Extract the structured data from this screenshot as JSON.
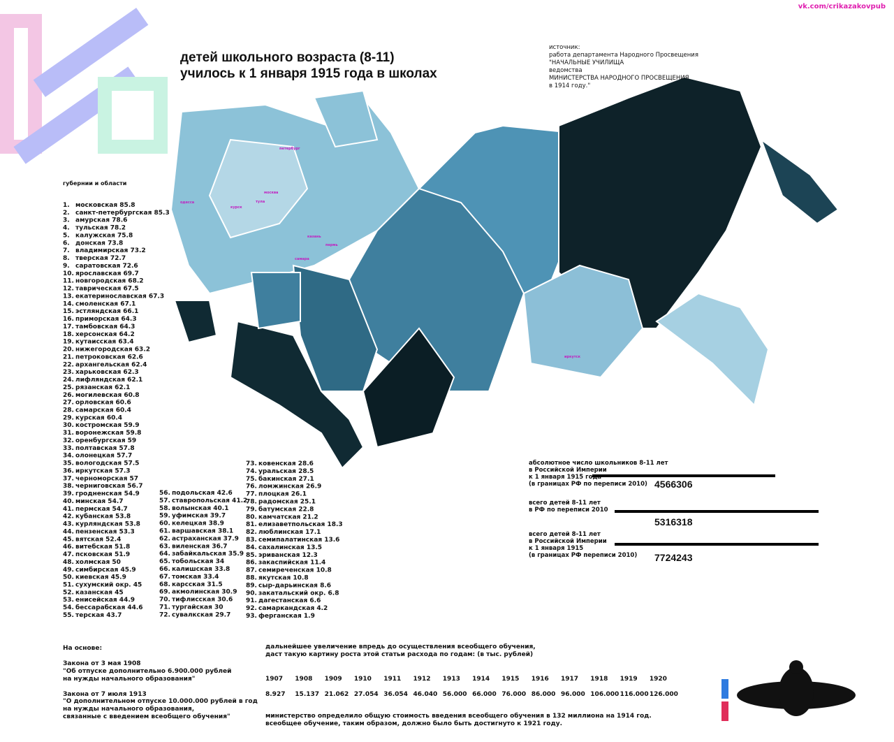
{
  "header": {
    "credit": "vk.com/crikazakovpub",
    "title": [
      "детей школьного возраста (8-11)",
      "училось к 1 января 1915 года в школах"
    ],
    "source": [
      "источник:",
      "работа департамента Народного Просвещения",
      "\"НАЧАЛЬНЫЕ УЧИЛИЩА",
      "ведомства",
      "МИНИСТЕРСТВА НАРОДНОГО ПРОСВЕЩЕНИЯ",
      "в 1914 году.\""
    ]
  },
  "map_labels": [
    "петербург",
    "москва",
    "тула",
    "курск",
    "одесса",
    "казань",
    "пермь",
    "самара",
    "иркутск"
  ],
  "list": {
    "title": "губернии и области",
    "items": [
      [
        "1.",
        "московская 85.8"
      ],
      [
        "2.",
        "санкт-петербургская 85.3"
      ],
      [
        "3.",
        "амурская 78.6"
      ],
      [
        "4.",
        "тульская 78.2"
      ],
      [
        "5.",
        "калужская 75.8"
      ],
      [
        "6.",
        "донская 73.8"
      ],
      [
        "7.",
        "владимирская 73.2"
      ],
      [
        "8.",
        "тверская 72.7"
      ],
      [
        "9.",
        "саратовская 72.6"
      ],
      [
        "10.",
        "ярославская 69.7"
      ],
      [
        "11.",
        "новгородская 68.2"
      ],
      [
        "12.",
        "таврическая 67.5"
      ],
      [
        "13.",
        "екатеринославская 67.3"
      ],
      [
        "14.",
        "смоленская 67.1"
      ],
      [
        "15.",
        "эстляндская 66.1"
      ],
      [
        "16.",
        "приморская 64.3"
      ],
      [
        "17.",
        "тамбовская 64.3"
      ],
      [
        "18.",
        "херсонская 64.2"
      ],
      [
        "19.",
        "кутаисская 63.4"
      ],
      [
        "20.",
        "нижегородская 63.2"
      ],
      [
        "21.",
        "петроковская 62.6"
      ],
      [
        "22.",
        "архангельская 62.4"
      ],
      [
        "23.",
        "харьковская 62.3"
      ],
      [
        "24.",
        "лифляндская 62.1"
      ],
      [
        "25.",
        "рязанская 62.1"
      ],
      [
        "26.",
        "могилевская 60.8"
      ],
      [
        "27.",
        "орловская 60.6"
      ],
      [
        "28.",
        "самарская 60.4"
      ],
      [
        "29.",
        "курская 60.4"
      ],
      [
        "30.",
        "костромская 59.9"
      ],
      [
        "31.",
        "воронежская 59.8"
      ],
      [
        "32.",
        "оренбургская 59"
      ],
      [
        "33.",
        "полтавская 57.8"
      ],
      [
        "34.",
        "олонецкая 57.7"
      ],
      [
        "35.",
        "вологодская 57.5"
      ],
      [
        "36.",
        "иркутская 57.3"
      ],
      [
        "37.",
        "черноморская 57"
      ],
      [
        "38.",
        "черниговская 56.7"
      ],
      [
        "39.",
        "гродненская 54.9"
      ],
      [
        "40.",
        "минская 54.7"
      ],
      [
        "41.",
        "пермская 54.7"
      ],
      [
        "42.",
        "кубанская 53.8"
      ],
      [
        "43.",
        "курляндская 53.8"
      ],
      [
        "44.",
        "пензенская 53.3"
      ],
      [
        "45.",
        "вятская 52.4"
      ],
      [
        "46.",
        "витебская 51.8"
      ],
      [
        "47.",
        "псковская 51.9"
      ],
      [
        "48.",
        "холмская 50"
      ],
      [
        "49.",
        "симбирская 45.9"
      ],
      [
        "50.",
        "киевская 45.9"
      ],
      [
        "51.",
        "сухумский окр. 45"
      ],
      [
        "52.",
        "казанская 45"
      ],
      [
        "53.",
        "енисейская 44.9"
      ],
      [
        "54.",
        "бессарабская 44.6"
      ],
      [
        "55.",
        "терская 43.7"
      ],
      [
        "56.",
        "подольская 42.6"
      ],
      [
        "57.",
        "ставропольская 41.2"
      ],
      [
        "58.",
        "волынская 40.1"
      ],
      [
        "59.",
        "уфимская 39.7"
      ],
      [
        "60.",
        "келецкая 38.9"
      ],
      [
        "61.",
        "варшавская 38.1"
      ],
      [
        "62.",
        "астраханская 37.9"
      ],
      [
        "63.",
        "виленская 36.7"
      ],
      [
        "64.",
        "забайкальская 35.9"
      ],
      [
        "65.",
        "тобольская 34"
      ],
      [
        "66.",
        "калишская 33.8"
      ],
      [
        "67.",
        "томская 33.4"
      ],
      [
        "68.",
        "карсская 31.5"
      ],
      [
        "69.",
        "акмолинская 30.9"
      ],
      [
        "70.",
        "тифлисская 30.6"
      ],
      [
        "71.",
        "тургайская 30"
      ],
      [
        "72.",
        "сувалкская 29.7"
      ],
      [
        "73.",
        "ковенская 28.6"
      ],
      [
        "74.",
        "уральская 28.5"
      ],
      [
        "75.",
        "бакинская 27.1"
      ],
      [
        "76.",
        "ломжинская 26.9"
      ],
      [
        "77.",
        "плоцкая 26.1"
      ],
      [
        "78.",
        "радомская 25.1"
      ],
      [
        "79.",
        "батумская 22.8"
      ],
      [
        "80.",
        "камчатская 21.2"
      ],
      [
        "81.",
        "елизаветпольская 18.3"
      ],
      [
        "82.",
        "люблинская 17.1"
      ],
      [
        "83.",
        "семипалатинская 13.6"
      ],
      [
        "84.",
        "сахалинская 13.5"
      ],
      [
        "85.",
        "эриванская 12.3"
      ],
      [
        "86.",
        "закаспийская 11.4"
      ],
      [
        "87.",
        "семиреченская 10.8"
      ],
      [
        "88.",
        "якутская 10.8"
      ],
      [
        "89.",
        "сыр-дарьинская 8.6"
      ],
      [
        "90.",
        "закатальский окр. 6.8"
      ],
      [
        "91.",
        "дагестанская 6.6"
      ],
      [
        "92.",
        "самаркандская 4.2"
      ],
      [
        "93.",
        "ферганская 1.9"
      ]
    ]
  },
  "stats": [
    {
      "label": [
        "абсолютное число школьников 8-11 лет",
        "в Российской Империи",
        "к 1 января 1915 года",
        "(в границах РФ по переписи 2010)"
      ],
      "value": "4566306"
    },
    {
      "label": [
        "всего детей 8-11 лет",
        "в РФ по переписи 2010"
      ],
      "value": "5316318"
    },
    {
      "label": [
        "всего детей 8-11 лет",
        "в Российской Империи",
        "к 1 января 1915",
        "(в границах РФ переписи 2010)"
      ],
      "value": "7724243"
    }
  ],
  "basis": [
    "На основе:",
    "Закона от 3 мая 1908",
    "\"Об отпуске дополнительно 6.900.000 рублей",
    "на нужды начального образования\"",
    "Закона от 7 июля 1913",
    "\"О дополнительном отпуске 10.000.000 рублей в год",
    "на нужды начального образования,",
    "связанные с введением всеобщего обучения\""
  ],
  "budget": {
    "intro": [
      "дальнейшее увеличение впредь до осуществления всеобщего обучения,",
      "даст такую картину роста этой статьи расхода по годам:  (в тыс. рублей)"
    ],
    "years": [
      "1907",
      "1908",
      "1909",
      "1910",
      "1911",
      "1912",
      "1913",
      "1914",
      "1915",
      "1916",
      "1917",
      "1918",
      "1919",
      "1920"
    ],
    "amounts": [
      "8.927",
      "15.137",
      "21.062",
      "27.054",
      "36.054",
      "46.040",
      "56.000",
      "66.000",
      "76.000",
      "86.000",
      "96.000",
      "106.000",
      "116.000",
      "126.000"
    ],
    "note": [
      "министерство определило общую стоимость введения всеобщего обучения в 132 миллиона на 1914 год.",
      "всеобщее обучение, таким образом, должно было быть достигнуто к 1921 году."
    ]
  }
}
